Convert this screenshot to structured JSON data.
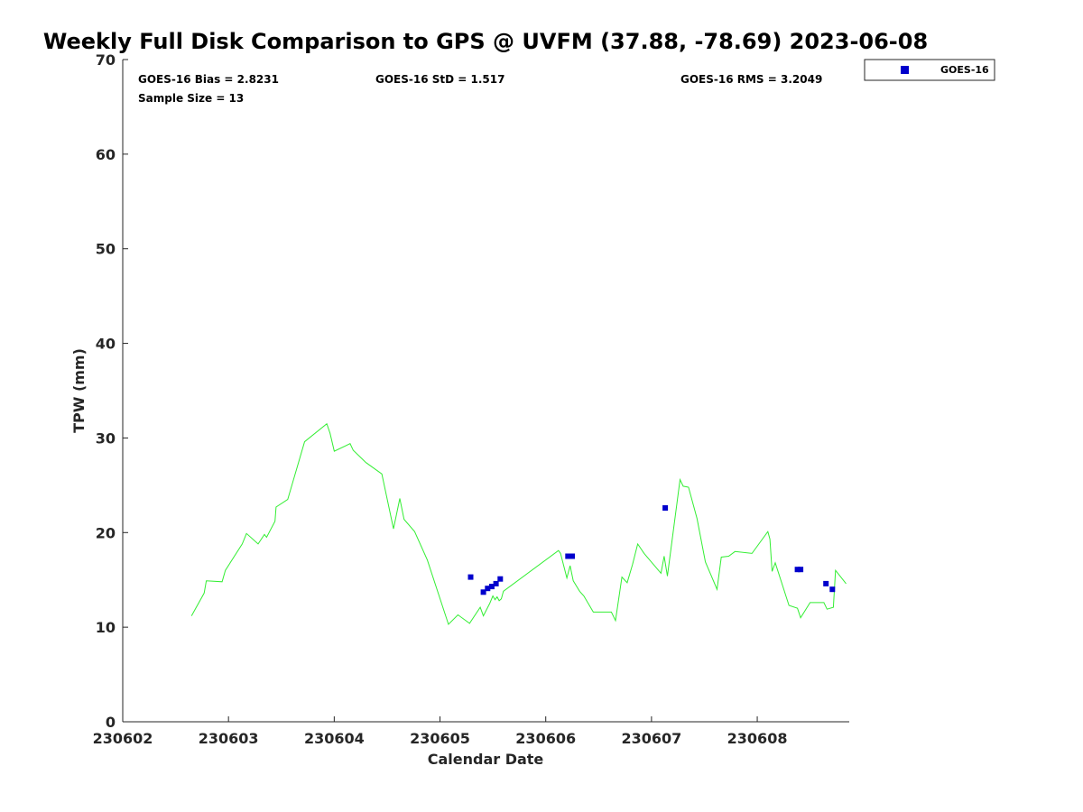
{
  "chart_data": {
    "type": "scatter",
    "title": "Weekly Full Disk Comparison to GPS @ UVFM (37.88, -78.69) 2023-06-08",
    "xlabel": "Calendar Date",
    "ylabel": "TPW (mm)",
    "xlim": [
      230602,
      230608.87
    ],
    "ylim": [
      0,
      70
    ],
    "x_ticks": [
      230602,
      230603,
      230604,
      230605,
      230606,
      230607,
      230608
    ],
    "x_tick_labels": [
      "230602",
      "230603",
      "230604",
      "230605",
      "230606",
      "230607",
      "230608"
    ],
    "y_ticks": [
      0,
      10,
      20,
      30,
      40,
      50,
      60,
      70
    ],
    "y_tick_labels": [
      "0",
      "10",
      "20",
      "30",
      "40",
      "50",
      "60",
      "70"
    ],
    "grid": false,
    "stats": {
      "bias": "GOES-16 Bias = 2.8231",
      "std": "GOES-16 StD = 1.517",
      "rms": "GOES-16 RMS = 3.2049",
      "sample": "Sample Size = 13"
    },
    "legend": {
      "placement": "top-right outside",
      "entries": [
        "GOES-16"
      ]
    },
    "series": [
      {
        "name": "GOES-16",
        "kind": "scatter",
        "color": "#0000cc",
        "x": [
          230605.29,
          230605.41,
          230605.45,
          230605.49,
          230605.53,
          230605.57,
          230606.21,
          230606.25,
          230607.13,
          230608.38,
          230608.41,
          230608.65,
          230608.71
        ],
        "y": [
          15.3,
          13.7,
          14.1,
          14.3,
          14.6,
          15.1,
          17.5,
          17.5,
          22.6,
          16.1,
          16.1,
          14.6,
          14.0
        ]
      },
      {
        "kind": "line",
        "color": "#33ee33",
        "x": [
          230602.65,
          230602.77,
          230602.79,
          230602.94,
          230602.97,
          230603.13,
          230603.17,
          230603.28,
          230603.34,
          230603.36,
          230603.44,
          230603.45,
          230603.56,
          230603.72,
          230603.93,
          230603.96,
          230604.0,
          230604.15,
          230604.18,
          230604.3,
          230604.45,
          230604.56,
          230604.62,
          230604.66,
          230604.76,
          230604.88,
          230605.08,
          230605.17,
          230605.28,
          230605.38,
          230605.41,
          230605.47,
          230605.5,
          230605.52,
          230605.54,
          230605.56,
          230605.58,
          230605.6,
          230606.12,
          230606.14,
          230606.2,
          230606.23,
          230606.26,
          230606.32,
          230606.36,
          230606.45,
          230606.62,
          230606.66,
          230606.72,
          230606.77,
          230606.82,
          230606.87,
          230606.93,
          230607.09,
          230607.12,
          230607.15,
          230607.27,
          230607.3,
          230607.35,
          230607.43,
          230607.51,
          230607.62,
          230607.66,
          230607.73,
          230607.79,
          230607.95,
          230608.1,
          230608.12,
          230608.14,
          230608.17,
          230608.3,
          230608.38,
          230608.41,
          230608.5,
          230608.63,
          230608.66,
          230608.72,
          230608.74,
          230608.84
        ],
        "y": [
          11.2,
          13.6,
          14.9,
          14.8,
          16.0,
          18.8,
          19.9,
          18.8,
          19.8,
          19.5,
          21.2,
          22.7,
          23.5,
          29.6,
          31.5,
          30.5,
          28.6,
          29.4,
          28.7,
          27.4,
          26.2,
          20.4,
          23.6,
          21.4,
          20.1,
          17.1,
          10.3,
          11.3,
          10.4,
          12.1,
          11.2,
          12.5,
          13.3,
          12.9,
          13.2,
          12.8,
          13.0,
          13.8,
          18.1,
          17.8,
          15.2,
          16.5,
          14.9,
          13.8,
          13.3,
          11.6,
          11.6,
          10.7,
          15.3,
          14.7,
          16.6,
          18.8,
          17.8,
          15.7,
          17.5,
          15.4,
          25.6,
          24.9,
          24.8,
          21.5,
          16.9,
          14.0,
          17.4,
          17.5,
          18.0,
          17.8,
          20.1,
          19.3,
          15.9,
          16.8,
          12.3,
          12.0,
          11.0,
          12.6,
          12.6,
          11.9,
          12.1,
          16.0,
          14.6
        ]
      }
    ]
  }
}
